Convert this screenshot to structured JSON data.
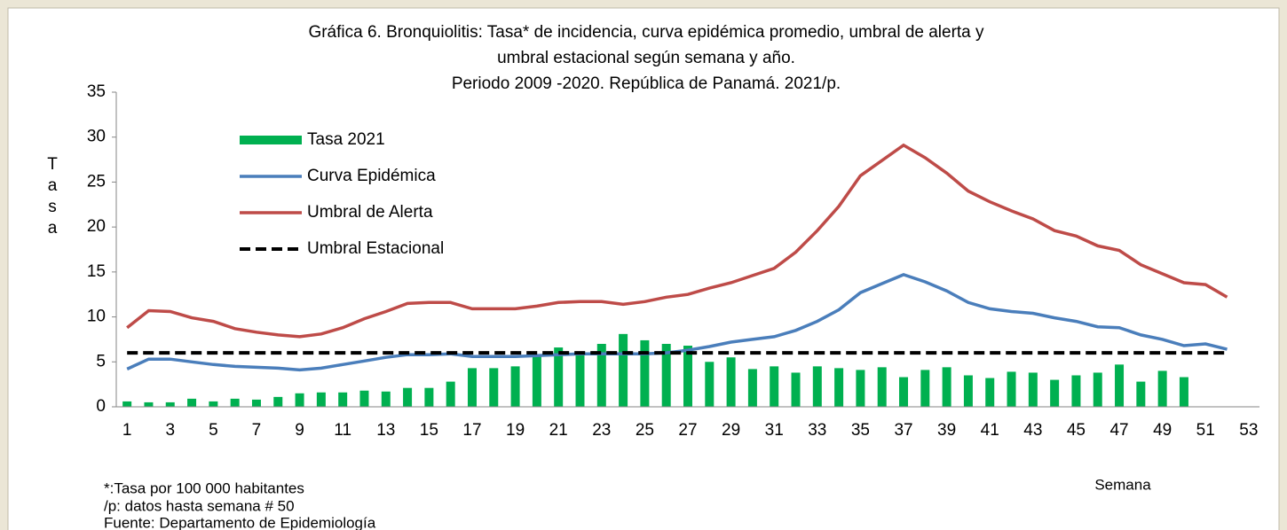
{
  "chart_data": {
    "type": "bar-line",
    "title": [
      "Gráfica 6. Bronquiolitis: Tasa* de incidencia, curva epidémica promedio, umbral de alerta   y",
      "umbral estacional según semana y año.",
      "Periodo 2009 -2020. República de Panamá. 2021/p."
    ],
    "y_axis_label": "Tasa",
    "x_axis_label": "Semana",
    "notes": [
      "*:Tasa por 100 000 habitantes",
      "/p: datos hasta semana  # 50",
      "Fuente: Departamento de Epidemiología"
    ],
    "categories": [
      1,
      null,
      3,
      null,
      5,
      null,
      7,
      null,
      9,
      null,
      11,
      null,
      13,
      null,
      15,
      null,
      17,
      null,
      19,
      null,
      21,
      null,
      23,
      null,
      25,
      null,
      27,
      null,
      29,
      null,
      31,
      null,
      33,
      null,
      35,
      null,
      37,
      null,
      39,
      null,
      41,
      null,
      43,
      null,
      45,
      null,
      47,
      null,
      49,
      null,
      51,
      null,
      53
    ],
    "series": [
      {
        "name": "Tasa 2021",
        "kind": "bar",
        "color": "#00b050",
        "values": [
          0.6,
          0.5,
          0.5,
          0.9,
          0.6,
          0.9,
          0.8,
          1.1,
          1.5,
          1.6,
          1.6,
          1.8,
          1.7,
          2.1,
          2.1,
          2.8,
          4.3,
          4.3,
          4.5,
          5.6,
          6.6,
          5.8,
          7.0,
          8.1,
          7.4,
          7.0,
          6.8,
          5.0,
          5.5,
          4.2,
          4.5,
          3.8,
          4.5,
          4.3,
          4.1,
          4.4,
          3.3,
          4.1,
          4.4,
          3.5,
          3.2,
          3.9,
          3.8,
          3.0,
          3.5,
          3.8,
          4.7,
          2.8,
          4.0,
          3.3,
          null,
          null,
          null
        ]
      },
      {
        "name": "Curva Epidémica",
        "kind": "line",
        "color": "#4a7ebb",
        "values": [
          4.2,
          5.3,
          5.3,
          5.0,
          4.7,
          4.5,
          4.4,
          4.3,
          4.1,
          4.3,
          4.7,
          5.1,
          5.5,
          5.8,
          5.8,
          5.9,
          5.6,
          5.6,
          5.6,
          5.7,
          5.8,
          5.9,
          5.9,
          5.9,
          5.9,
          6.0,
          6.3,
          6.7,
          7.2,
          7.5,
          7.8,
          8.5,
          9.5,
          10.8,
          12.7,
          13.7,
          14.7,
          13.9,
          12.9,
          11.6,
          10.9,
          10.6,
          10.4,
          9.9,
          9.5,
          8.9,
          8.8,
          8.0,
          7.5,
          6.8,
          7.0,
          6.4,
          null
        ]
      },
      {
        "name": "Umbral de Alerta",
        "kind": "line",
        "color": "#be4b48",
        "values": [
          8.8,
          10.7,
          10.6,
          9.9,
          9.5,
          8.7,
          8.3,
          8.0,
          7.8,
          8.1,
          8.8,
          9.8,
          10.6,
          11.5,
          11.6,
          11.6,
          10.9,
          10.9,
          10.9,
          11.2,
          11.6,
          11.7,
          11.7,
          11.4,
          11.7,
          12.2,
          12.5,
          13.2,
          13.8,
          14.6,
          15.4,
          17.2,
          19.6,
          22.3,
          25.7,
          27.4,
          29.1,
          27.7,
          26.0,
          24.0,
          22.8,
          21.8,
          20.9,
          19.6,
          19.0,
          17.9,
          17.4,
          15.8,
          14.8,
          13.8,
          13.6,
          12.2,
          null
        ]
      },
      {
        "name": "Umbral Estacional",
        "kind": "dashed",
        "color": "#000000",
        "values": [
          6,
          6,
          6,
          6,
          6,
          6,
          6,
          6,
          6,
          6,
          6,
          6,
          6,
          6,
          6,
          6,
          6,
          6,
          6,
          6,
          6,
          6,
          6,
          6,
          6,
          6,
          6,
          6,
          6,
          6,
          6,
          6,
          6,
          6,
          6,
          6,
          6,
          6,
          6,
          6,
          6,
          6,
          6,
          6,
          6,
          6,
          6,
          6,
          6,
          6,
          6,
          6,
          null
        ]
      }
    ],
    "ylim": [
      0,
      35
    ],
    "yticks": [
      0,
      5,
      10,
      15,
      20,
      25,
      30,
      35
    ],
    "grid": false,
    "legend": "upper left"
  }
}
